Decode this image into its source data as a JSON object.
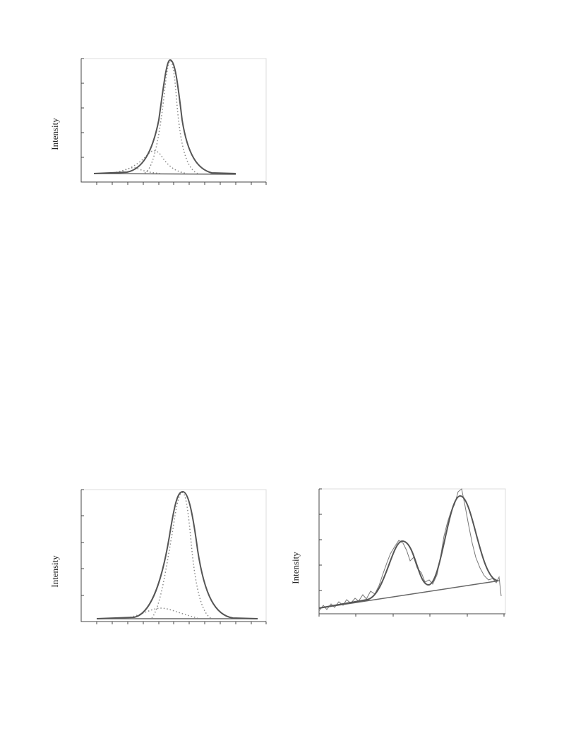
{
  "figures": [
    {
      "y_label": "Intensity"
    },
    {
      "y_label": "Intensity"
    },
    {
      "y_label": "Intensity"
    }
  ]
}
